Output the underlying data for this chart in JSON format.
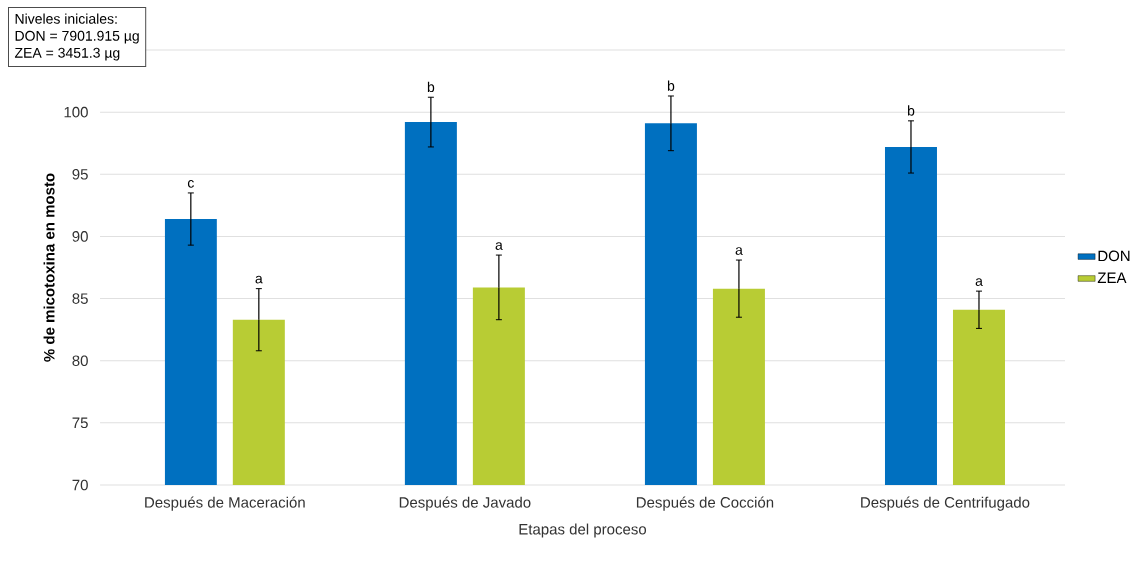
{
  "chart_data": {
    "type": "bar",
    "categories": [
      "Después de Maceración",
      "Después de Javado",
      "Después de Cocción",
      "Después de Centrifugado"
    ],
    "series": [
      {
        "name": "DON",
        "color": "#0070c0",
        "values": [
          91.4,
          99.2,
          99.1,
          97.2
        ],
        "errors": [
          2.1,
          2.0,
          2.2,
          2.1
        ]
      },
      {
        "name": "ZEA",
        "color": "#b8cc34",
        "values": [
          83.3,
          85.9,
          85.8,
          84.1
        ],
        "errors": [
          2.5,
          2.6,
          2.3,
          1.5
        ]
      }
    ],
    "xlabel": "Etapas del proceso",
    "ylabel": "% de micotoxina en mosto",
    "ylim": [
      70,
      105
    ],
    "yticks": [
      70,
      75,
      80,
      85,
      90,
      95,
      100,
      {
        "value": 105,
        "label": null
      }
    ],
    "grid": "y",
    "legend": "right",
    "annotations": [
      "Niveles iniciales:",
      "DON = 7901.915 µg",
      "ZEA = 3451.3 µg",
      "c",
      "a",
      "b",
      "a",
      "b",
      "a",
      "b",
      "a"
    ]
  }
}
